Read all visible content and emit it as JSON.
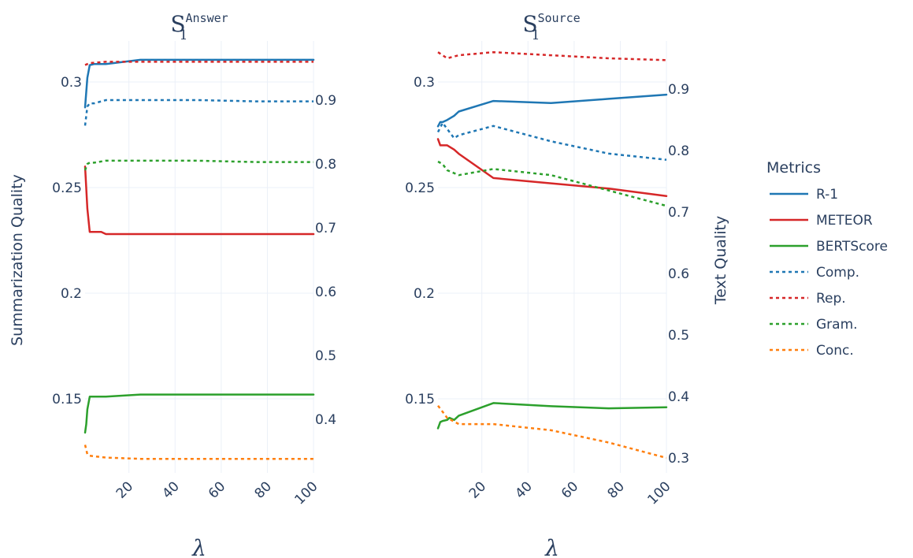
{
  "chart_data": [
    {
      "type": "line",
      "title": {
        "base": "S",
        "sub": "1",
        "sup": "Answer"
      },
      "xlabel": "λ",
      "ylabel": "Summarization Quality",
      "y2label": "",
      "xticks": [
        20,
        40,
        60,
        80,
        100
      ],
      "yticks": [
        0.15,
        0.2,
        0.25,
        0.3
      ],
      "y2ticks": [
        0.4,
        0.5,
        0.6,
        0.7,
        0.8,
        0.9
      ],
      "xlim": [
        1,
        100
      ],
      "ylim": [
        0.126,
        0.3225
      ],
      "y2lim": [
        0.308,
        0.97
      ],
      "series": [
        {
          "name": "R-1",
          "axis": "y",
          "dash": "solid",
          "color": "#1f77b4",
          "x": [
            1,
            2,
            3,
            5,
            10,
            25,
            50,
            75,
            100
          ],
          "y": [
            0.288,
            0.302,
            0.308,
            0.3085,
            0.3085,
            0.3105,
            0.3105,
            0.3105,
            0.3105
          ]
        },
        {
          "name": "METEOR",
          "axis": "y",
          "dash": "solid",
          "color": "#d62728",
          "x": [
            1,
            2,
            3,
            5,
            8,
            10,
            25,
            50,
            75,
            100
          ],
          "y": [
            0.26,
            0.24,
            0.229,
            0.229,
            0.229,
            0.228,
            0.228,
            0.228,
            0.228,
            0.228
          ]
        },
        {
          "name": "BERTScore",
          "axis": "y",
          "dash": "solid",
          "color": "#2ca02c",
          "x": [
            1,
            1.5,
            2,
            3,
            5,
            10,
            25,
            50,
            75,
            100
          ],
          "y": [
            0.134,
            0.138,
            0.145,
            0.151,
            0.151,
            0.151,
            0.152,
            0.152,
            0.152,
            0.152
          ]
        },
        {
          "name": "Comp.",
          "axis": "y2",
          "dash": "dot",
          "color": "#1f77b4",
          "x": [
            1,
            2,
            3,
            5,
            10,
            25,
            50,
            75,
            100
          ],
          "y": [
            0.86,
            0.89,
            0.895,
            0.895,
            0.9,
            0.9,
            0.9,
            0.898,
            0.898
          ]
        },
        {
          "name": "Rep.",
          "axis": "y2",
          "dash": "dot",
          "color": "#d62728",
          "x": [
            1,
            3,
            10,
            25,
            50,
            75,
            100
          ],
          "y": [
            0.955,
            0.958,
            0.96,
            0.96,
            0.96,
            0.96,
            0.96
          ]
        },
        {
          "name": "Gram.",
          "axis": "y2",
          "dash": "dot",
          "color": "#2ca02c",
          "x": [
            1,
            2,
            3,
            5,
            10,
            25,
            50,
            75,
            100
          ],
          "y": [
            0.79,
            0.8,
            0.802,
            0.802,
            0.805,
            0.805,
            0.805,
            0.803,
            0.803
          ]
        },
        {
          "name": "Conc.",
          "axis": "y2",
          "dash": "dot",
          "color": "#ff7f0e",
          "x": [
            1,
            2,
            3,
            5,
            10,
            25,
            50,
            75,
            100
          ],
          "y": [
            0.36,
            0.345,
            0.343,
            0.342,
            0.34,
            0.338,
            0.338,
            0.338,
            0.338
          ]
        }
      ]
    },
    {
      "type": "line",
      "title": {
        "base": "S",
        "sub": "1",
        "sup": "Source"
      },
      "xlabel": "λ",
      "ylabel": "",
      "y2label": "Text Quality",
      "xticks": [
        20,
        40,
        60,
        80,
        100
      ],
      "yticks": [
        0.15,
        0.2,
        0.25,
        0.3
      ],
      "y2ticks": [
        0.3,
        0.4,
        0.5,
        0.6,
        0.7,
        0.8,
        0.9
      ],
      "xlim": [
        1,
        100
      ],
      "ylim": [
        0.126,
        0.3225
      ],
      "y2lim": [
        0.29,
        0.97
      ],
      "series": [
        {
          "name": "R-1",
          "axis": "y",
          "dash": "solid",
          "color": "#1f77b4",
          "x": [
            1,
            2,
            3,
            5,
            8,
            10,
            25,
            50,
            75,
            100
          ],
          "y": [
            0.279,
            0.281,
            0.281,
            0.282,
            0.284,
            0.286,
            0.291,
            0.29,
            0.292,
            0.294
          ]
        },
        {
          "name": "METEOR",
          "axis": "y",
          "dash": "solid",
          "color": "#d62728",
          "x": [
            1,
            2,
            3,
            5,
            8,
            10,
            25,
            50,
            75,
            100
          ],
          "y": [
            0.273,
            0.27,
            0.27,
            0.27,
            0.268,
            0.266,
            0.2545,
            0.252,
            0.2495,
            0.246
          ]
        },
        {
          "name": "BERTScore",
          "axis": "y",
          "dash": "solid",
          "color": "#2ca02c",
          "x": [
            1,
            2,
            3,
            5,
            6,
            7,
            8,
            10,
            25,
            50,
            75,
            100
          ],
          "y": [
            0.136,
            0.139,
            0.1395,
            0.14,
            0.141,
            0.1405,
            0.14,
            0.142,
            0.148,
            0.1465,
            0.1455,
            0.146
          ]
        },
        {
          "name": "Comp.",
          "axis": "y2",
          "dash": "dot",
          "color": "#1f77b4",
          "x": [
            1,
            3,
            8,
            10,
            25,
            50,
            75,
            100
          ],
          "y": [
            0.83,
            0.845,
            0.82,
            0.825,
            0.84,
            0.815,
            0.795,
            0.785
          ]
        },
        {
          "name": "Rep.",
          "axis": "y2",
          "dash": "dot",
          "color": "#d62728",
          "x": [
            1,
            5,
            10,
            25,
            50,
            75,
            100
          ],
          "y": [
            0.96,
            0.95,
            0.955,
            0.96,
            0.955,
            0.95,
            0.947
          ]
        },
        {
          "name": "Gram.",
          "axis": "y2",
          "dash": "dot",
          "color": "#2ca02c",
          "x": [
            1,
            3,
            5,
            10,
            25,
            50,
            75,
            100
          ],
          "y": [
            0.782,
            0.778,
            0.768,
            0.76,
            0.77,
            0.76,
            0.735,
            0.71
          ]
        },
        {
          "name": "Conc.",
          "axis": "y2",
          "dash": "dot",
          "color": "#ff7f0e",
          "x": [
            1,
            3,
            5,
            10,
            25,
            50,
            75,
            100
          ],
          "y": [
            0.385,
            0.375,
            0.365,
            0.355,
            0.355,
            0.345,
            0.325,
            0.3
          ]
        }
      ]
    }
  ],
  "legend": {
    "title": "Metrics",
    "items": [
      {
        "name": "R-1",
        "dash": "solid",
        "color": "#1f77b4"
      },
      {
        "name": "METEOR",
        "dash": "solid",
        "color": "#d62728"
      },
      {
        "name": "BERTScore",
        "dash": "solid",
        "color": "#2ca02c"
      },
      {
        "name": "Comp.",
        "dash": "dot",
        "color": "#1f77b4"
      },
      {
        "name": "Rep.",
        "dash": "dot",
        "color": "#d62728"
      },
      {
        "name": "Gram.",
        "dash": "dot",
        "color": "#2ca02c"
      },
      {
        "name": "Conc.",
        "dash": "dot",
        "color": "#ff7f0e"
      }
    ]
  }
}
